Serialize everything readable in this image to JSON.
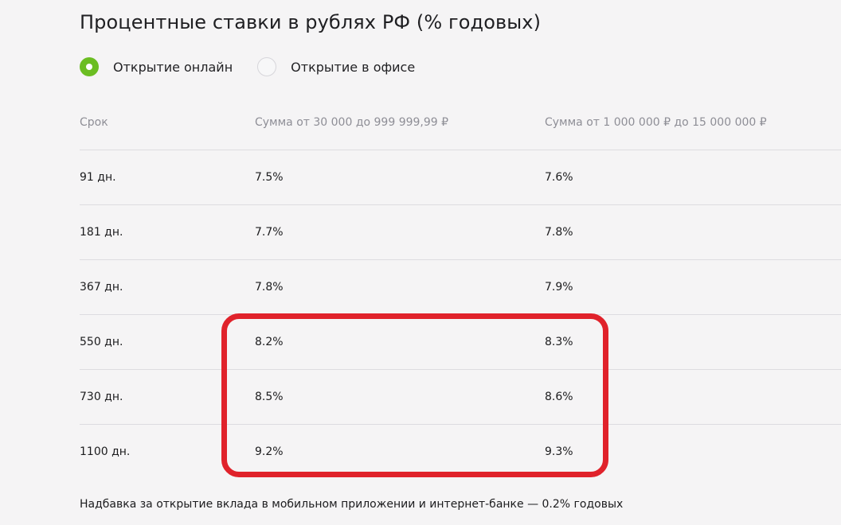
{
  "page": {
    "title": "Процентные ставки в рублях РФ (% годовых)"
  },
  "opening_type": {
    "options": [
      {
        "label": "Открытие онлайн",
        "selected": true
      },
      {
        "label": "Открытие в офисе",
        "selected": false
      }
    ]
  },
  "rates_table": {
    "headers": [
      "Срок",
      "Сумма от 30 000 до 999 999,99 ₽",
      "Сумма от 1 000 000 ₽ до 15 000 000 ₽"
    ],
    "rows": [
      [
        "91 дн.",
        "7.5%",
        "7.6%"
      ],
      [
        "181 дн.",
        "7.7%",
        "7.8%"
      ],
      [
        "367 дн.",
        "7.8%",
        "7.9%"
      ],
      [
        "550 дн.",
        "8.2%",
        "8.3%"
      ],
      [
        "730 дн.",
        "8.5%",
        "8.6%"
      ],
      [
        "1100 дн.",
        "9.2%",
        "9.3%"
      ]
    ]
  },
  "footnote": "Надбавка за открытие вклада в мобильном приложении и интернет-банке — 0.2% годовых",
  "colors": {
    "accent_green": "#6bbd22",
    "highlight_red": "#e0222b",
    "background": "#f5f4f5"
  }
}
